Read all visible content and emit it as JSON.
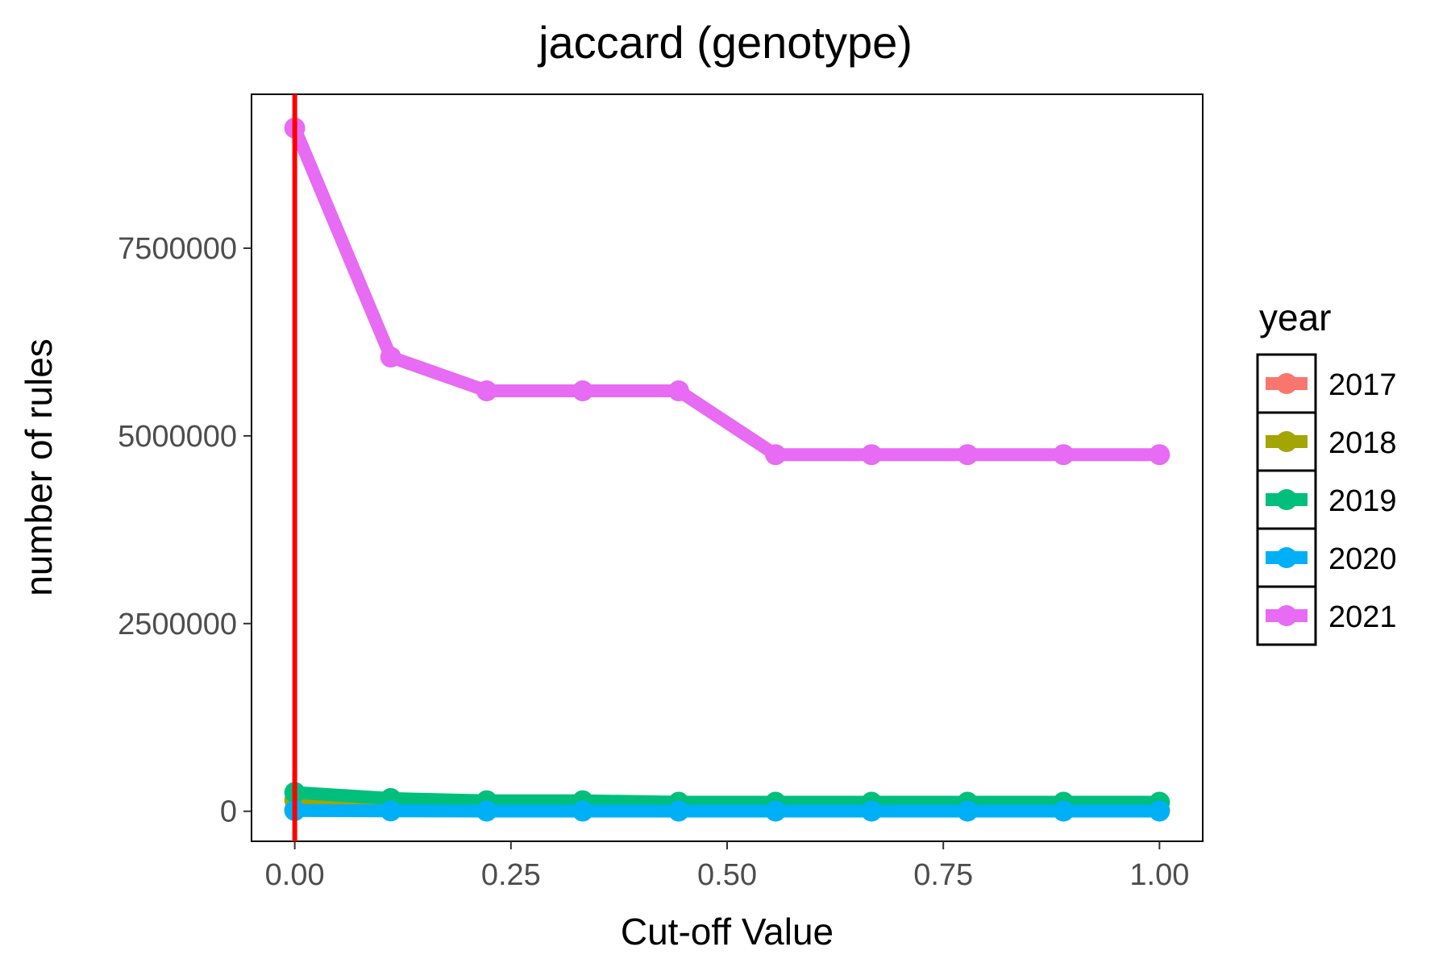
{
  "chart_data": {
    "type": "line",
    "title": "jaccard (genotype)",
    "xlabel": "Cut-off Value",
    "ylabel": "number of rules",
    "xlim": [
      -0.05,
      1.05
    ],
    "ylim": [
      -400000,
      9550000
    ],
    "x_ticks": [
      {
        "value": 0,
        "label": "0.00"
      },
      {
        "value": 0.25,
        "label": "0.25"
      },
      {
        "value": 0.5,
        "label": "0.50"
      },
      {
        "value": 0.75,
        "label": "0.75"
      },
      {
        "value": 1,
        "label": "1.00"
      }
    ],
    "y_ticks": [
      {
        "value": 0,
        "label": "0"
      },
      {
        "value": 2500000,
        "label": "2500000"
      },
      {
        "value": 5000000,
        "label": "5000000"
      },
      {
        "value": 7500000,
        "label": "7500000"
      }
    ],
    "grid": false,
    "x": [
      0,
      0.111,
      0.222,
      0.333,
      0.444,
      0.556,
      0.667,
      0.778,
      0.889,
      1.0
    ],
    "series": [
      {
        "name": "2017",
        "color": "#F8766D",
        "values": [
          20000,
          10000,
          8000,
          8000,
          8000,
          7000,
          7000,
          7000,
          7000,
          7000
        ]
      },
      {
        "name": "2018",
        "color": "#A3A500",
        "values": [
          150000,
          30000,
          20000,
          20000,
          20000,
          15000,
          15000,
          15000,
          15000,
          15000
        ]
      },
      {
        "name": "2019",
        "color": "#00BF7D",
        "values": [
          250000,
          170000,
          140000,
          140000,
          120000,
          120000,
          120000,
          120000,
          120000,
          120000
        ]
      },
      {
        "name": "2020",
        "color": "#00B0F6",
        "values": [
          10000,
          5000,
          3000,
          3000,
          3000,
          2000,
          2000,
          2000,
          2000,
          2000
        ]
      },
      {
        "name": "2021",
        "color": "#E76BF3",
        "values": [
          9100000,
          6050000,
          5600000,
          5600000,
          5600000,
          4750000,
          4750000,
          4750000,
          4750000,
          4750000
        ]
      }
    ],
    "reference_line": {
      "axis": "x",
      "value": 0,
      "color": "#FF0000"
    },
    "legend": {
      "title": "year",
      "position": "right"
    }
  }
}
